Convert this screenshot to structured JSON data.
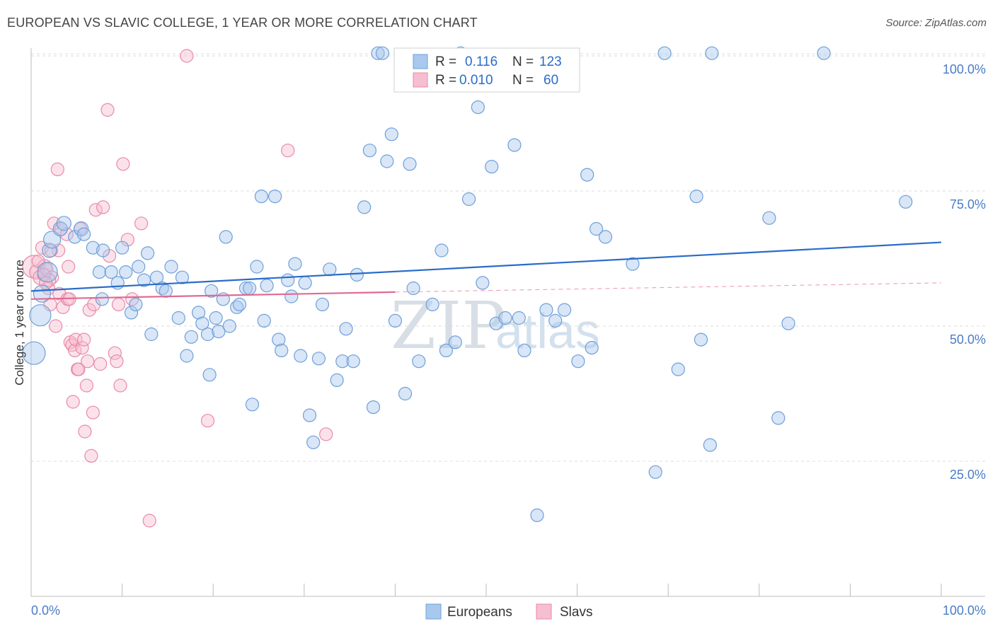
{
  "header": {
    "title": "EUROPEAN VS SLAVIC COLLEGE, 1 YEAR OR MORE CORRELATION CHART",
    "source": "Source: ZipAtlas.com"
  },
  "watermark": {
    "zip": "ZIP",
    "atlas": "atlas"
  },
  "legend_box": {
    "row1": {
      "r_label": "R =",
      "r_value": "0.116",
      "n_label": "N =",
      "n_value": "123"
    },
    "row2": {
      "r_label": "R =",
      "r_value": "0.010",
      "n_label": "N =",
      "n_value": "60"
    }
  },
  "colors": {
    "europeans_fill": "#a9c8ee",
    "europeans_stroke": "#6f9fd8",
    "europeans_line": "#2a6cc9",
    "slavs_fill": "#f6bfd0",
    "slavs_stroke": "#e98aa7",
    "slavs_line": "#e06a92",
    "value_text": "#2a6cc9"
  },
  "chart_data": {
    "type": "scatter",
    "title": "EUROPEAN VS SLAVIC COLLEGE, 1 YEAR OR MORE CORRELATION CHART",
    "xlabel": "",
    "ylabel": "College, 1 year or more",
    "xlim": [
      0,
      100
    ],
    "ylim": [
      0,
      105
    ],
    "x_tick_labels": [
      "0.0%",
      "100.0%"
    ],
    "y_tick_labels": [
      "25.0%",
      "50.0%",
      "75.0%",
      "100.0%"
    ],
    "y_ticks": [
      25,
      50,
      75,
      100
    ],
    "legend": [
      "Europeans",
      "Slavs"
    ],
    "series": [
      {
        "name": "Europeans",
        "r": 0.116,
        "n": 123,
        "trend": {
          "x0": 0,
          "y0": 56.5,
          "x1": 100,
          "y1": 65.5
        },
        "points": [
          [
            0.3,
            45,
            16
          ],
          [
            1.0,
            52,
            15
          ],
          [
            1.2,
            56,
            12
          ],
          [
            1.8,
            60,
            14
          ],
          [
            2.0,
            64,
            10
          ],
          [
            2.3,
            66,
            12
          ],
          [
            3.2,
            68,
            10
          ],
          [
            3.6,
            69,
            10
          ],
          [
            4.8,
            66.5,
            9
          ],
          [
            5.5,
            68,
            10
          ],
          [
            5.8,
            67,
            9
          ],
          [
            6.8,
            64.5,
            9
          ],
          [
            7.5,
            60,
            9
          ],
          [
            7.8,
            55,
            9
          ],
          [
            7.9,
            64,
            9
          ],
          [
            8.8,
            60,
            9
          ],
          [
            9.5,
            58,
            9
          ],
          [
            10,
            64.5,
            9
          ],
          [
            10.4,
            60,
            9
          ],
          [
            11,
            52.5,
            9
          ],
          [
            11.5,
            54,
            9
          ],
          [
            11.8,
            61,
            9
          ],
          [
            12.4,
            58.5,
            9
          ],
          [
            12.8,
            63.5,
            9
          ],
          [
            13.2,
            48.5,
            9
          ],
          [
            13.8,
            59,
            9
          ],
          [
            14.4,
            57,
            9
          ],
          [
            14.8,
            56.5,
            9
          ],
          [
            15.4,
            61,
            9
          ],
          [
            16.2,
            51.5,
            9
          ],
          [
            16.6,
            59,
            9
          ],
          [
            17.1,
            44.5,
            9
          ],
          [
            17.6,
            48,
            9
          ],
          [
            18.4,
            52.5,
            9
          ],
          [
            18.8,
            50.5,
            9
          ],
          [
            19.4,
            48.5,
            9
          ],
          [
            19.6,
            41,
            9
          ],
          [
            19.8,
            56.5,
            9
          ],
          [
            20.3,
            51.5,
            9
          ],
          [
            20.6,
            49,
            9
          ],
          [
            21.1,
            55,
            9
          ],
          [
            21.4,
            66.5,
            9
          ],
          [
            21.8,
            50,
            9
          ],
          [
            22.6,
            53.5,
            9
          ],
          [
            22.9,
            54,
            9
          ],
          [
            23.6,
            57,
            9
          ],
          [
            24.0,
            57,
            9
          ],
          [
            24.3,
            35.5,
            9
          ],
          [
            24.8,
            61,
            9
          ],
          [
            25.3,
            74,
            9
          ],
          [
            25.6,
            51,
            9
          ],
          [
            25.9,
            57.5,
            9
          ],
          [
            26.8,
            74,
            9
          ],
          [
            27.2,
            47.5,
            9
          ],
          [
            27.5,
            45.5,
            9
          ],
          [
            28.2,
            58.5,
            9
          ],
          [
            28.6,
            55.5,
            9
          ],
          [
            29.0,
            61.5,
            9
          ],
          [
            29.6,
            44.5,
            9
          ],
          [
            30.1,
            58,
            9
          ],
          [
            30.6,
            33.5,
            9
          ],
          [
            31.0,
            28.5,
            9
          ],
          [
            31.6,
            44,
            9
          ],
          [
            32.0,
            54,
            9
          ],
          [
            32.8,
            60.5,
            9
          ],
          [
            33.6,
            40,
            9
          ],
          [
            34.2,
            43.5,
            9
          ],
          [
            34.6,
            49.5,
            9
          ],
          [
            35.4,
            43.5,
            9
          ],
          [
            35.8,
            59.5,
            9
          ],
          [
            36.6,
            72,
            9
          ],
          [
            37.2,
            82.5,
            9
          ],
          [
            37.6,
            35,
            9
          ],
          [
            38.1,
            100.5,
            9
          ],
          [
            38.6,
            100.5,
            9
          ],
          [
            39.1,
            80.5,
            9
          ],
          [
            39.6,
            85.5,
            9
          ],
          [
            40.0,
            51,
            9
          ],
          [
            41.1,
            37.5,
            9
          ],
          [
            41.6,
            80,
            9
          ],
          [
            42.0,
            57,
            9
          ],
          [
            42.6,
            43.5,
            9
          ],
          [
            44.1,
            54,
            9
          ],
          [
            45.1,
            64,
            9
          ],
          [
            45.6,
            45.5,
            9
          ],
          [
            46.6,
            47,
            9
          ],
          [
            47.2,
            100.5,
            9
          ],
          [
            48.1,
            73.5,
            9
          ],
          [
            49.1,
            90.5,
            9
          ],
          [
            49.6,
            58,
            9
          ],
          [
            50.6,
            79.5,
            9
          ],
          [
            51.1,
            50.5,
            9
          ],
          [
            52.1,
            51.5,
            9
          ],
          [
            53.1,
            83.5,
            9
          ],
          [
            53.6,
            51.5,
            9
          ],
          [
            54.2,
            45.5,
            9
          ],
          [
            55.1,
            96.5,
            9
          ],
          [
            55.6,
            15,
            9
          ],
          [
            56.6,
            53,
            9
          ],
          [
            57.6,
            51,
            9
          ],
          [
            58.6,
            53,
            9
          ],
          [
            60.1,
            43.5,
            9
          ],
          [
            61.1,
            78,
            9
          ],
          [
            61.6,
            46,
            9
          ],
          [
            62.1,
            68,
            9
          ],
          [
            63.1,
            66.5,
            9
          ],
          [
            66.1,
            61.5,
            9
          ],
          [
            68.6,
            23,
            9
          ],
          [
            69.6,
            100.5,
            9
          ],
          [
            71.1,
            42,
            9
          ],
          [
            73.1,
            74,
            9
          ],
          [
            73.6,
            47.5,
            9
          ],
          [
            74.6,
            28,
            9
          ],
          [
            74.8,
            100.5,
            9
          ],
          [
            81.1,
            70,
            9
          ],
          [
            82.1,
            33,
            9
          ],
          [
            83.2,
            50.5,
            9
          ],
          [
            87.1,
            100.5,
            9
          ],
          [
            96.1,
            73,
            9
          ]
        ]
      },
      {
        "name": "Slavs",
        "r": 0.01,
        "n": 60,
        "trend": {
          "x0": 0,
          "y0": 55,
          "x1": 40,
          "y1": 56.3,
          "dash_x1": 100,
          "dash_y1": 58
        },
        "points": [
          [
            0.3,
            61,
            16
          ],
          [
            0.6,
            60,
            10
          ],
          [
            1.0,
            59,
            10
          ],
          [
            1.2,
            64.5,
            9
          ],
          [
            1.5,
            61,
            10
          ],
          [
            1.7,
            60.5,
            9
          ],
          [
            1.9,
            57,
            9
          ],
          [
            2.1,
            54,
            9
          ],
          [
            2.3,
            59,
            9
          ],
          [
            2.5,
            69,
            9
          ],
          [
            2.7,
            50,
            9
          ],
          [
            2.9,
            79,
            9
          ],
          [
            3.1,
            56,
            9
          ],
          [
            3.3,
            68,
            9
          ],
          [
            3.5,
            53.5,
            9
          ],
          [
            3.9,
            67,
            9
          ],
          [
            4.0,
            55,
            9
          ],
          [
            4.1,
            61,
            9
          ],
          [
            4.3,
            47,
            9
          ],
          [
            4.5,
            46.5,
            9
          ],
          [
            4.6,
            36,
            9
          ],
          [
            4.8,
            45.5,
            9
          ],
          [
            4.9,
            47.5,
            9
          ],
          [
            5.1,
            42,
            9
          ],
          [
            5.2,
            42,
            9
          ],
          [
            5.4,
            68,
            9
          ],
          [
            5.6,
            46,
            9
          ],
          [
            5.8,
            47.5,
            9
          ],
          [
            5.9,
            30.5,
            9
          ],
          [
            6.1,
            39,
            9
          ],
          [
            6.2,
            43.5,
            9
          ],
          [
            6.4,
            53,
            9
          ],
          [
            6.6,
            26,
            9
          ],
          [
            6.8,
            34,
            9
          ],
          [
            6.9,
            54,
            9
          ],
          [
            7.1,
            71.5,
            9
          ],
          [
            7.6,
            43,
            9
          ],
          [
            7.9,
            72,
            9
          ],
          [
            8.4,
            90,
            9
          ],
          [
            8.6,
            63,
            9
          ],
          [
            9.2,
            45,
            9
          ],
          [
            9.4,
            43.5,
            9
          ],
          [
            9.6,
            54,
            9
          ],
          [
            9.8,
            39,
            9
          ],
          [
            10.1,
            80,
            9
          ],
          [
            10.6,
            66,
            9
          ],
          [
            11.1,
            55,
            9
          ],
          [
            12.1,
            69,
            9
          ],
          [
            13.0,
            14,
            9
          ],
          [
            17.1,
            100,
            9
          ],
          [
            19.4,
            32.5,
            9
          ],
          [
            28.2,
            82.5,
            9
          ],
          [
            32.4,
            30,
            9
          ],
          [
            2.0,
            58.5,
            9
          ],
          [
            1.4,
            59.5,
            9
          ],
          [
            3.0,
            64,
            9
          ],
          [
            2.2,
            64,
            9
          ],
          [
            0.8,
            62,
            9
          ],
          [
            1.6,
            58,
            9
          ],
          [
            4.2,
            55,
            9
          ]
        ]
      }
    ]
  }
}
